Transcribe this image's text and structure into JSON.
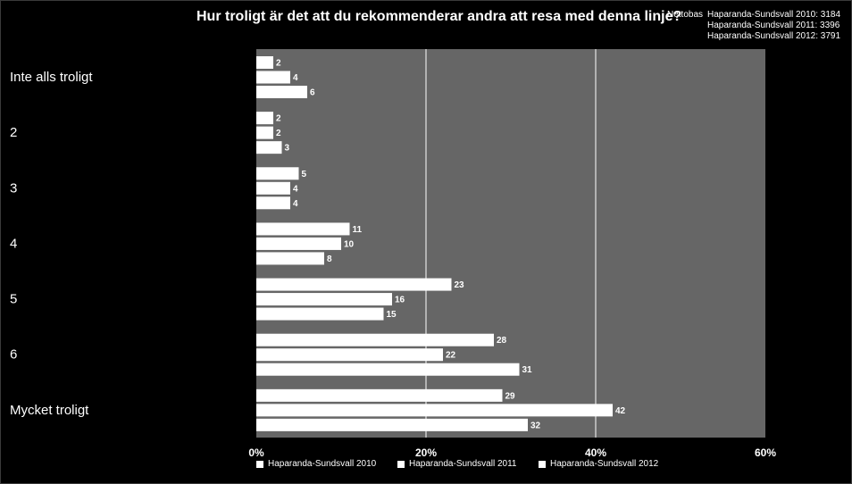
{
  "header": {
    "title": "Hur troligt är det att du rekommenderar andra att resa med denna linje?",
    "netto_label": "Nettobas",
    "netto_lines": [
      "Haparanda-Sundsvall 2010: 3184",
      "Haparanda-Sundsvall 2011: 3396",
      "Haparanda-Sundsvall 2012: 3791"
    ]
  },
  "colors": {
    "background": "#000000",
    "plot_area": "#666666",
    "bars": "#ffffff",
    "gridlines": "#ffffff"
  },
  "chart_data": {
    "type": "bar",
    "orientation": "horizontal",
    "title": "Hur troligt är det att du rekommenderar andra att resa med denna linje?",
    "categories": [
      "Inte alls troligt",
      "2",
      "3",
      "4",
      "5",
      "6",
      "Mycket troligt"
    ],
    "series": [
      {
        "name": "Haparanda-Sundsvall 2010",
        "values": [
          2,
          2,
          5,
          11,
          23,
          28,
          29
        ]
      },
      {
        "name": "Haparanda-Sundsvall 2011",
        "values": [
          4,
          2,
          4,
          10,
          16,
          22,
          42
        ]
      },
      {
        "name": "Haparanda-Sundsvall 2012",
        "values": [
          6,
          3,
          4,
          8,
          15,
          31,
          32
        ]
      }
    ],
    "xlim": [
      0,
      60
    ],
    "x_ticks": [
      "0%",
      "20%",
      "40%",
      "60%"
    ],
    "grid": true,
    "legend_position": "bottom"
  }
}
